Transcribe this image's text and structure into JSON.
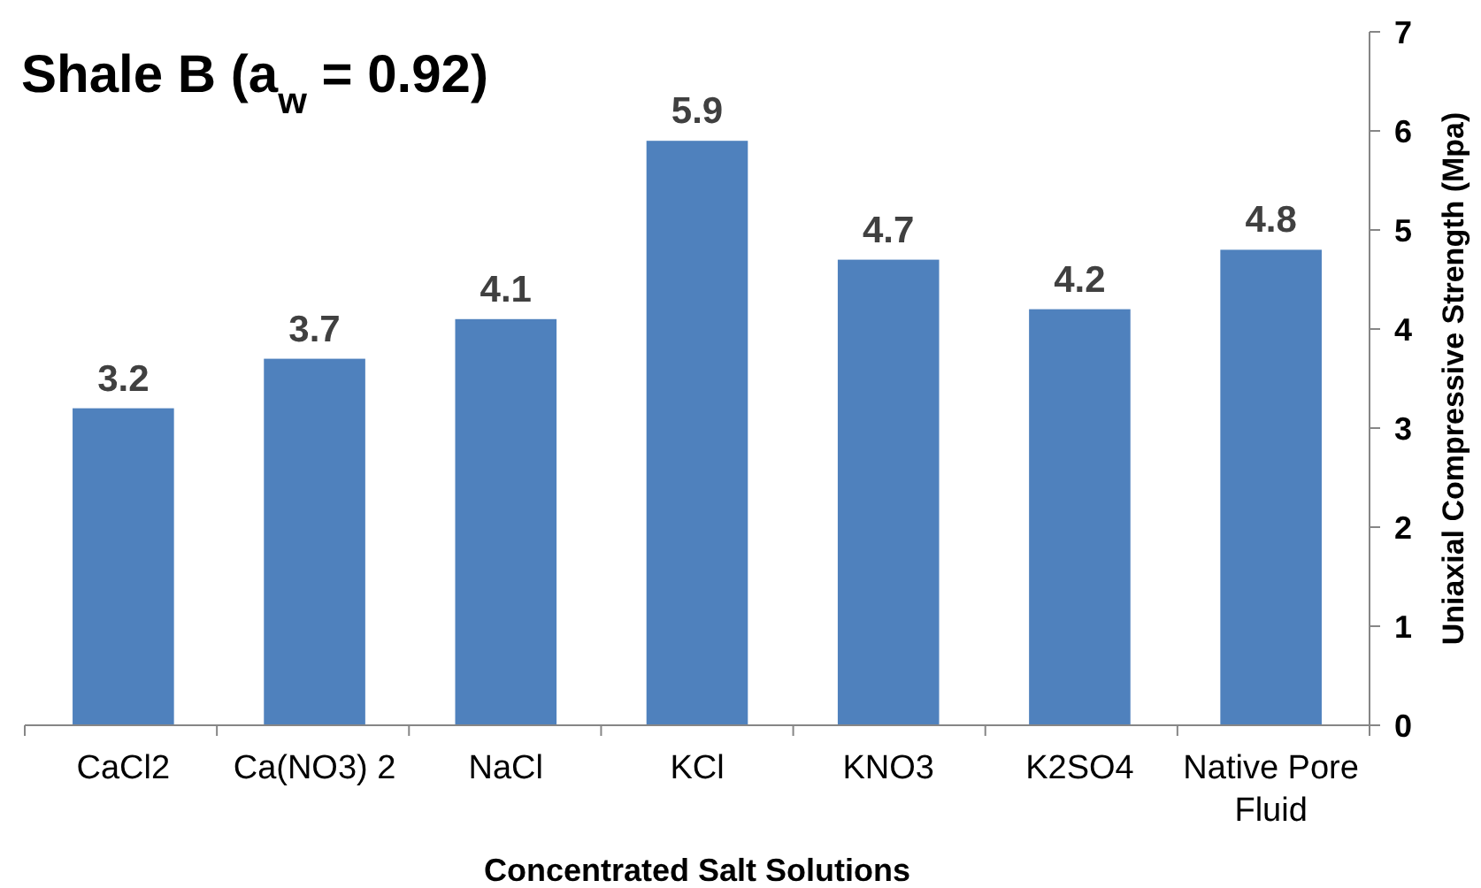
{
  "chart_data": {
    "type": "bar",
    "title": "Shale B (a$_{w}$ = 0.92)",
    "xlabel": "Concentrated Salt Solutions",
    "ylabel": "Uniaxial Compressive Strength (Mpa)",
    "categories": [
      "CaCl2",
      "Ca(NO3) 2",
      "NaCl",
      "KCl",
      "KNO3",
      "K2SO4",
      "Native Pore Fluid"
    ],
    "values": [
      3.2,
      3.7,
      4.1,
      5.9,
      4.7,
      4.2,
      4.8
    ],
    "color": "#4f81bd",
    "ylim": [
      0,
      7
    ],
    "yticks": [
      0,
      1,
      2,
      3,
      4,
      5,
      6,
      7
    ],
    "data_labels": true,
    "grid": false
  }
}
